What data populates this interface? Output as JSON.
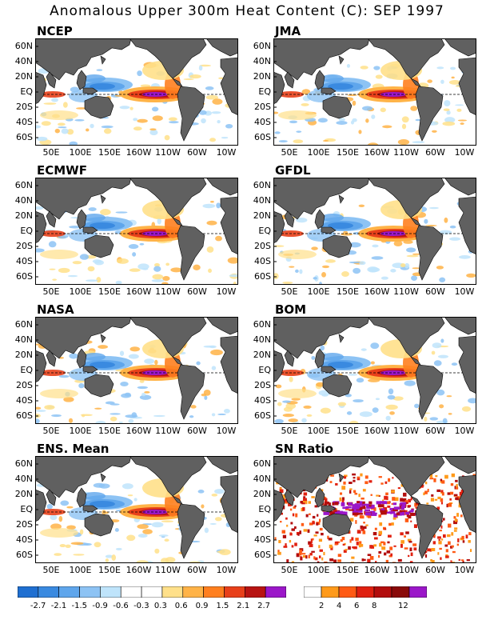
{
  "title": "Anomalous Upper 300m Heat Content (C): SEP 1997",
  "lat_labels": [
    "60N",
    "40N",
    "20N",
    "EQ",
    "20S",
    "40S",
    "60S"
  ],
  "lon_labels": [
    "50E",
    "100E",
    "150E",
    "160W",
    "110W",
    "60W",
    "10W"
  ],
  "panels": [
    {
      "title": "NCEP"
    },
    {
      "title": "JMA"
    },
    {
      "title": "ECMWF"
    },
    {
      "title": "GFDL"
    },
    {
      "title": "NASA"
    },
    {
      "title": "BOM"
    },
    {
      "title": "ENS. Mean"
    },
    {
      "title": "SN Ratio"
    }
  ],
  "colors": {
    "land": "#606060",
    "neg": [
      "#1f6fd1",
      "#3a8ae0",
      "#5fa6ec",
      "#8dc3f4",
      "#bfe4fb"
    ],
    "pos": [
      "#ffe08a",
      "#ffb347",
      "#ff7f1f",
      "#e8401a",
      "#b81412",
      "#8a0a0a",
      "#9b17c9"
    ]
  },
  "anomaly_colorbar": {
    "colors": [
      "#1f6fd1",
      "#3a8ae0",
      "#5fa6ec",
      "#8dc3f4",
      "#bfe4fb",
      "#ffffff",
      "#ffffff",
      "#ffe08a",
      "#ffb347",
      "#ff7f1f",
      "#e8401a",
      "#b81412",
      "#9b17c9"
    ],
    "labels": [
      "-2.7",
      "-2.1",
      "-1.5",
      "-0.9",
      "-0.6",
      "-0.3",
      "0.3",
      "0.6",
      "0.9",
      "1.5",
      "2.1",
      "2.7"
    ]
  },
  "snr_colorbar": {
    "colors": [
      "#ffffff",
      "#ff9a1a",
      "#ff5a14",
      "#e02010",
      "#b30d0d",
      "#8a0a0a",
      "#9b17c9"
    ],
    "labels": [
      "2",
      "4",
      "6",
      "8",
      "12"
    ]
  }
}
